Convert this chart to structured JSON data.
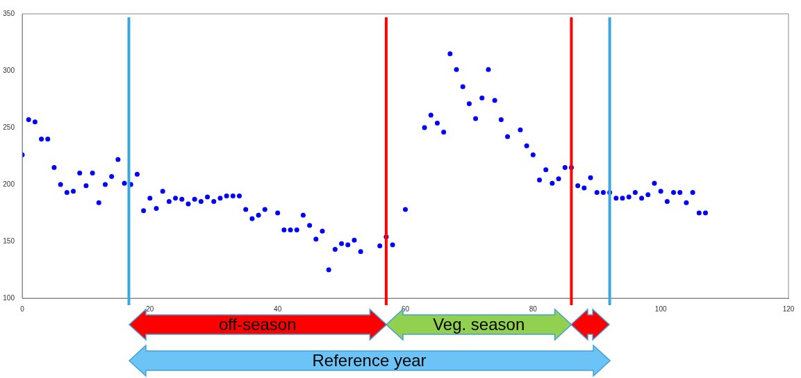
{
  "chart_data": {
    "type": "scatter",
    "x": [
      0,
      1,
      2,
      3,
      4,
      5,
      6,
      7,
      8,
      9,
      10,
      11,
      12,
      13,
      14,
      15,
      16,
      17,
      18,
      19,
      20,
      21,
      22,
      23,
      24,
      25,
      26,
      27,
      28,
      29,
      30,
      31,
      32,
      33,
      34,
      35,
      36,
      37,
      38,
      40,
      41,
      42,
      43,
      44,
      45,
      46,
      47,
      48,
      49,
      50,
      51,
      52,
      53,
      56,
      57,
      58,
      60,
      63,
      64,
      65,
      66,
      67,
      68,
      69,
      70,
      71,
      72,
      73,
      74,
      75,
      76,
      78,
      79,
      80,
      81,
      82,
      83,
      84,
      85,
      86,
      87,
      88,
      89,
      90,
      91,
      92,
      93,
      94,
      95,
      96,
      97,
      98,
      99,
      100,
      101,
      102,
      103,
      104,
      105,
      106,
      107
    ],
    "series": [
      {
        "color": "#0000ff",
        "values": [
          226,
          257,
          255,
          240,
          240,
          215,
          200,
          193,
          194,
          210,
          199,
          210,
          184,
          200,
          207,
          222,
          201,
          200,
          209,
          177,
          188,
          179,
          194,
          185,
          188,
          187,
          183,
          187,
          185,
          189,
          185,
          188,
          190,
          190,
          190,
          178,
          170,
          173,
          178,
          175,
          160,
          160,
          160,
          173,
          164,
          152,
          159,
          125,
          143,
          148,
          147,
          151,
          141,
          146,
          154,
          147,
          178,
          250,
          261,
          254,
          246,
          315,
          301,
          286,
          271,
          258,
          276,
          301,
          274,
          257,
          242,
          248,
          234,
          226,
          204,
          213,
          201,
          205,
          215,
          215,
          199,
          197,
          206,
          193,
          193,
          193,
          188,
          188,
          189,
          193,
          188,
          191,
          201,
          194,
          185,
          193,
          193,
          184,
          193,
          175,
          175
        ]
      }
    ],
    "xlim": [
      0,
      120
    ],
    "xticks": [
      0,
      20,
      40,
      60,
      80,
      100,
      120
    ],
    "ylim": [
      100,
      350
    ],
    "yticks": [
      100,
      150,
      200,
      250,
      300,
      350
    ],
    "grid": false,
    "legend": false,
    "marker": "circle",
    "ref_lines": [
      {
        "axis": "x",
        "value": 16.7,
        "color": "#3ba7dc"
      },
      {
        "axis": "x",
        "value": 57,
        "color": "#ff0000"
      },
      {
        "axis": "x",
        "value": 86,
        "color": "#ff0000"
      },
      {
        "axis": "x",
        "value": 92,
        "color": "#3ba7dc"
      }
    ],
    "annotations": [
      "off-season",
      "Veg. season",
      "Reference year"
    ]
  }
}
